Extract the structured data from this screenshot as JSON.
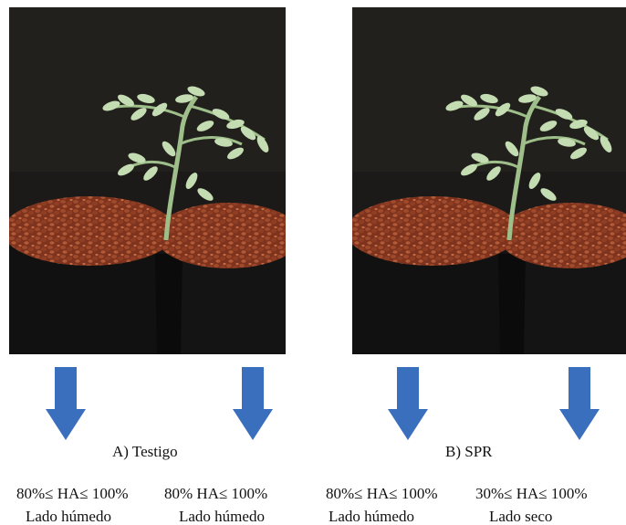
{
  "panels": [
    {
      "caption": "A) Testigo",
      "sides": [
        {
          "range": "80%≤ HA≤ 100%",
          "side": "Lado húmedo"
        },
        {
          "range": "80% HA≤ 100%",
          "side": "Lado húmedo"
        }
      ]
    },
    {
      "caption": "B) SPR",
      "sides": [
        {
          "range": "80%≤ HA≤ 100%",
          "side": "Lado húmedo"
        },
        {
          "range": "30%≤ HA≤ 100%",
          "side": "Lado seco"
        }
      ]
    }
  ],
  "colors": {
    "arrow": "#3a6fbe",
    "background_dark": "#1c1a18",
    "substrate": "#8a3b22",
    "pot": "#111111",
    "foliage": "#b7d3a4"
  },
  "icons": [
    "plant-photo",
    "down-arrow-icon"
  ]
}
